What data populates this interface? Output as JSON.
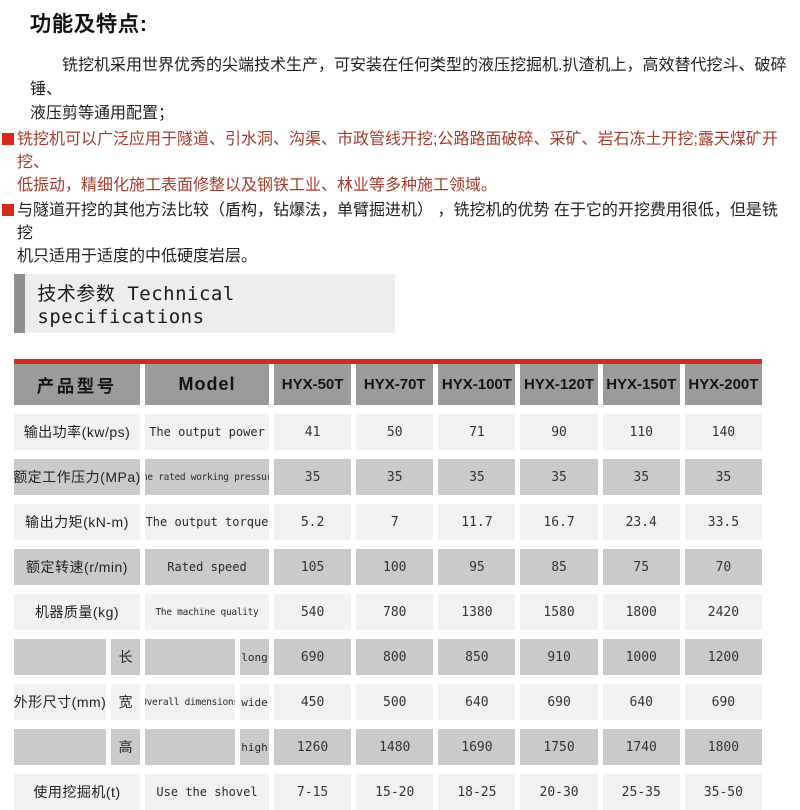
{
  "colors": {
    "accent_red": "#d7281e",
    "header_gray": "#9b9b9b",
    "row_light": "#f1f1f1",
    "row_dark": "#cacaca",
    "section_box": "#ededed",
    "section_bar": "#8f8f8f",
    "bullet_red_text": "#a43c31",
    "text_dark": "#1f1f1f"
  },
  "header": {
    "title": "功能及特点:"
  },
  "intro": {
    "text": "铣挖机采用世界优秀的尖端技术生产，可安装在任何类型的液压挖掘机.扒渣机上，高效替代挖斗、破碎锤、\n液压剪等通用配置；"
  },
  "bullets": [
    {
      "text": "铣挖机可以广泛应用于隧道、引水洞、沟渠、市政管线开挖;公路路面破碎、采矿、岩石冻土开挖;露天煤矿开挖、\n低振动，精细化施工表面修整以及钢铁工业、林业等多种施工领域。"
    },
    {
      "text": "与隧道开挖的其他方法比较（盾构，钻爆法，单臂掘进机） ，铣挖机的优势 在于它的开挖费用很低，但是铣挖\n机只适用于适度的中低硬度岩层。"
    }
  ],
  "section": {
    "heading": "技术参数 Technical specifications"
  },
  "table": {
    "header": {
      "product_label": "产品型号",
      "model_label": "Model",
      "models": [
        "HYX-50T",
        "HYX-70T",
        "HYX-100T",
        "HYX-120T",
        "HYX-150T",
        "HYX-200T"
      ]
    },
    "rows": [
      {
        "cn": "输出功率(kw/ps)",
        "en": "The output power",
        "values": [
          "41",
          "50",
          "71",
          "90",
          "110",
          "140"
        ]
      },
      {
        "cn": "额定工作压力(MPa)",
        "en": "The rated working pressure",
        "values": [
          "35",
          "35",
          "35",
          "35",
          "35",
          "35"
        ]
      },
      {
        "cn": "输出力矩(kN-m)",
        "en": "The output torque",
        "values": [
          "5.2",
          "7",
          "11.7",
          "16.7",
          "23.4",
          "33.5"
        ]
      },
      {
        "cn": "额定转速(r/min)",
        "en": "Rated speed",
        "values": [
          "105",
          "100",
          "95",
          "85",
          "75",
          "70"
        ]
      },
      {
        "cn": "机器质量(kg)",
        "en": "The machine quality",
        "values": [
          "540",
          "780",
          "1380",
          "1580",
          "1800",
          "2420"
        ]
      },
      {
        "cn": "",
        "sub_cn": "长",
        "en": "",
        "sub_en": "long",
        "values": [
          "690",
          "800",
          "850",
          "910",
          "1000",
          "1200"
        ]
      },
      {
        "cn": "外形尺寸(mm)",
        "sub_cn": "宽",
        "en": "Overall dimensions",
        "sub_en": "wide",
        "values": [
          "450",
          "500",
          "640",
          "690",
          "640",
          "690"
        ]
      },
      {
        "cn": "",
        "sub_cn": "高",
        "en": "",
        "sub_en": "high",
        "values": [
          "1260",
          "1480",
          "1690",
          "1750",
          "1740",
          "1800"
        ]
      },
      {
        "cn": "使用挖掘机(t)",
        "en": "Use the shovel",
        "values": [
          "7-15",
          "15-20",
          "18-25",
          "20-30",
          "25-35",
          "35-50"
        ]
      }
    ]
  }
}
